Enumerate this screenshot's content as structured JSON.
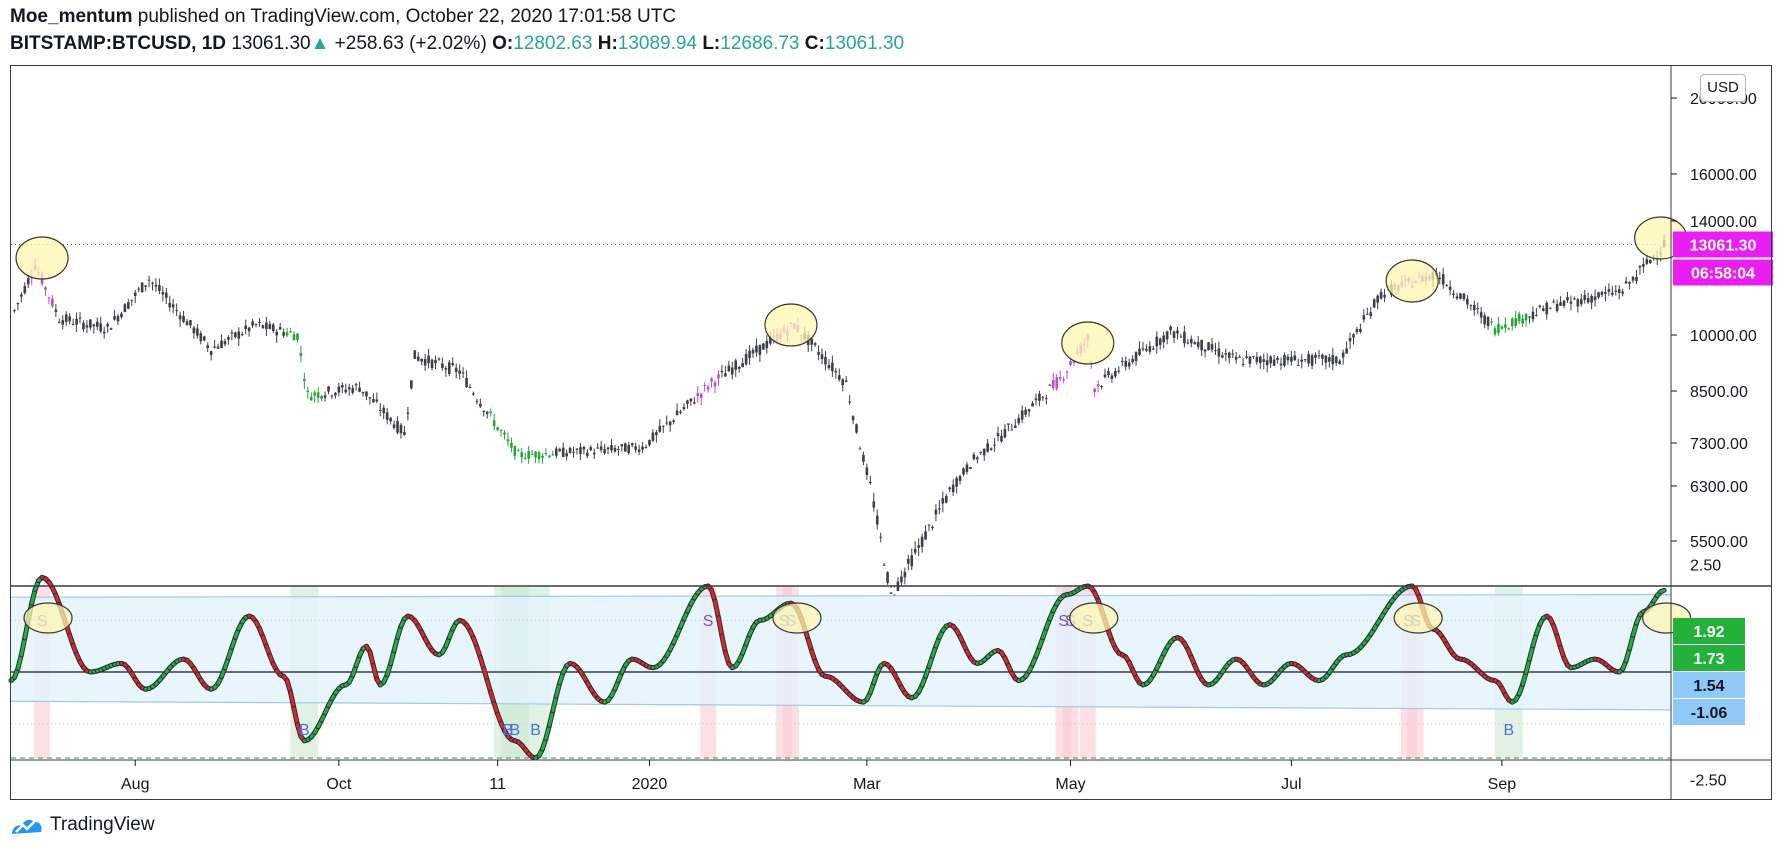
{
  "header": {
    "author": "Moe_mentum",
    "published": "published on TradingView.com, October 22, 2020 17:01:58 UTC",
    "symbol": "BITSTAMP:BTCUSD, 1D",
    "last": "13061.30",
    "change": "+258.63 (+2.02%)",
    "o_label": "O:",
    "o_value": "12802.63",
    "h_label": "H:",
    "h_value": "13089.94",
    "l_label": "L:",
    "l_value": "12686.73",
    "c_label": "C:",
    "c_value": "13061.30"
  },
  "colors": {
    "accent_green": "#26a69a",
    "price_label": "#e91ef0",
    "osc_green": "#22b23c",
    "osc_red": "#e02626",
    "osc_blue": "#90c8f8",
    "highlight": "#fdf6b2"
  },
  "price_labels": {
    "currency": "USD",
    "last": "13061.30",
    "countdown": "06:58:04"
  },
  "osc_labels": [
    "1.92",
    "1.73",
    "1.54",
    "-1.06"
  ],
  "chart_data": {
    "type": "candlestick",
    "symbol": "BITSTAMP:BTCUSD",
    "interval": "1D",
    "x_ticks": [
      "Aug",
      "Oct",
      "11",
      "2020",
      "Mar",
      "May",
      "Jul",
      "Sep"
    ],
    "price_axis": {
      "scale": "log",
      "ticks": [
        "20000.00",
        "16000.00",
        "14000.00",
        "10000.00",
        "8500.00",
        "7300.00",
        "6300.00",
        "5500.00"
      ],
      "range": [
        5000,
        21000
      ]
    },
    "price_path": [
      [
        "2019-07-01",
        10500
      ],
      [
        "2019-07-08",
        12300
      ],
      [
        "2019-07-15",
        10500
      ],
      [
        "2019-07-29",
        10200
      ],
      [
        "2019-08-10",
        11800
      ],
      [
        "2019-08-28",
        9600
      ],
      [
        "2019-09-10",
        10300
      ],
      [
        "2019-09-22",
        10000
      ],
      [
        "2019-09-25",
        8400
      ],
      [
        "2019-10-10",
        8600
      ],
      [
        "2019-10-23",
        7500
      ],
      [
        "2019-10-26",
        9400
      ],
      [
        "2019-11-08",
        9000
      ],
      [
        "2019-11-25",
        7000
      ],
      [
        "2019-12-15",
        7100
      ],
      [
        "2019-12-31",
        7200
      ],
      [
        "2020-01-20",
        8700
      ],
      [
        "2020-02-13",
        10300
      ],
      [
        "2020-02-28",
        8700
      ],
      [
        "2020-03-12",
        4800
      ],
      [
        "2020-04-05",
        6900
      ],
      [
        "2020-04-30",
        8800
      ],
      [
        "2020-05-08",
        9900
      ],
      [
        "2020-05-10",
        8600
      ],
      [
        "2020-06-01",
        10100
      ],
      [
        "2020-06-20",
        9300
      ],
      [
        "2020-07-20",
        9300
      ],
      [
        "2020-08-01",
        11300
      ],
      [
        "2020-08-17",
        12000
      ],
      [
        "2020-09-03",
        10200
      ],
      [
        "2020-09-20",
        10900
      ],
      [
        "2020-10-10",
        11400
      ],
      [
        "2020-10-22",
        13061.3
      ]
    ],
    "sell_signal_circles": [
      "2019-07-10",
      "2020-02-12",
      "2020-05-08",
      "2020-08-10",
      "2020-10-21"
    ],
    "oscillator": {
      "axis_ticks": [
        "2.50",
        "-2.50"
      ],
      "upper_threshold": 2.0,
      "lower_threshold": -2.0,
      "current_values": [
        1.92,
        1.73,
        1.54,
        -1.06
      ],
      "buy_signals": [
        {
          "x": "2019-09-24",
          "label": "B"
        },
        {
          "x": "2019-11-22",
          "label": "B"
        },
        {
          "x": "2019-11-24",
          "label": "B"
        },
        {
          "x": "2019-11-30",
          "label": "B"
        },
        {
          "x": "2020-09-07",
          "label": "B"
        }
      ],
      "sell_signals": [
        {
          "x": "2019-07-10",
          "label": "S"
        },
        {
          "x": "2020-01-19",
          "label": "S"
        },
        {
          "x": "2020-02-10",
          "label": "S"
        },
        {
          "x": "2020-02-12",
          "label": "S"
        },
        {
          "x": "2020-05-01",
          "label": "S"
        },
        {
          "x": "2020-05-03",
          "label": "S"
        },
        {
          "x": "2020-05-08",
          "label": "S"
        },
        {
          "x": "2020-08-09",
          "label": "S"
        },
        {
          "x": "2020-08-11",
          "label": "S"
        }
      ]
    }
  },
  "footer": {
    "brand": "TradingView"
  }
}
